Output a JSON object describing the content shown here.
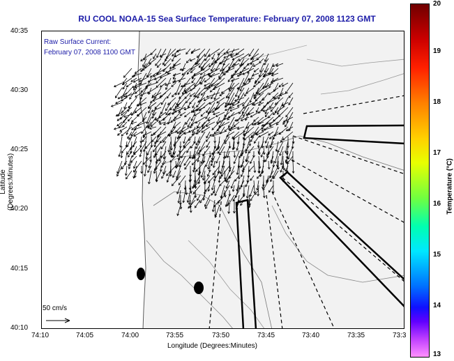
{
  "title": "RU COOL  NOAA-15  Sea Surface Temperature:  February 07, 2008 1123 GMT",
  "annotation": {
    "line1": "Raw Surface Current:",
    "line2": "February 07, 2008 1100 GMT"
  },
  "scale_label": "50 cm/s",
  "axes": {
    "xlabel": "Longitude (Degrees:Minutes)",
    "ylabel": "Latitude (Degrees:Minutes)",
    "xticks": [
      "74:10",
      "74:05",
      "74:00",
      "73:55",
      "73:50",
      "73:45",
      "73:40",
      "73:35",
      "73:3"
    ],
    "yticks": [
      "40:35",
      "40:30",
      "40:25",
      "40:20",
      "40:15",
      "40:10"
    ]
  },
  "colorbar": {
    "title": "Temperature (°C)",
    "ticks": [
      "20",
      "19",
      "18",
      "17",
      "16",
      "15",
      "14",
      "13"
    ]
  }
}
